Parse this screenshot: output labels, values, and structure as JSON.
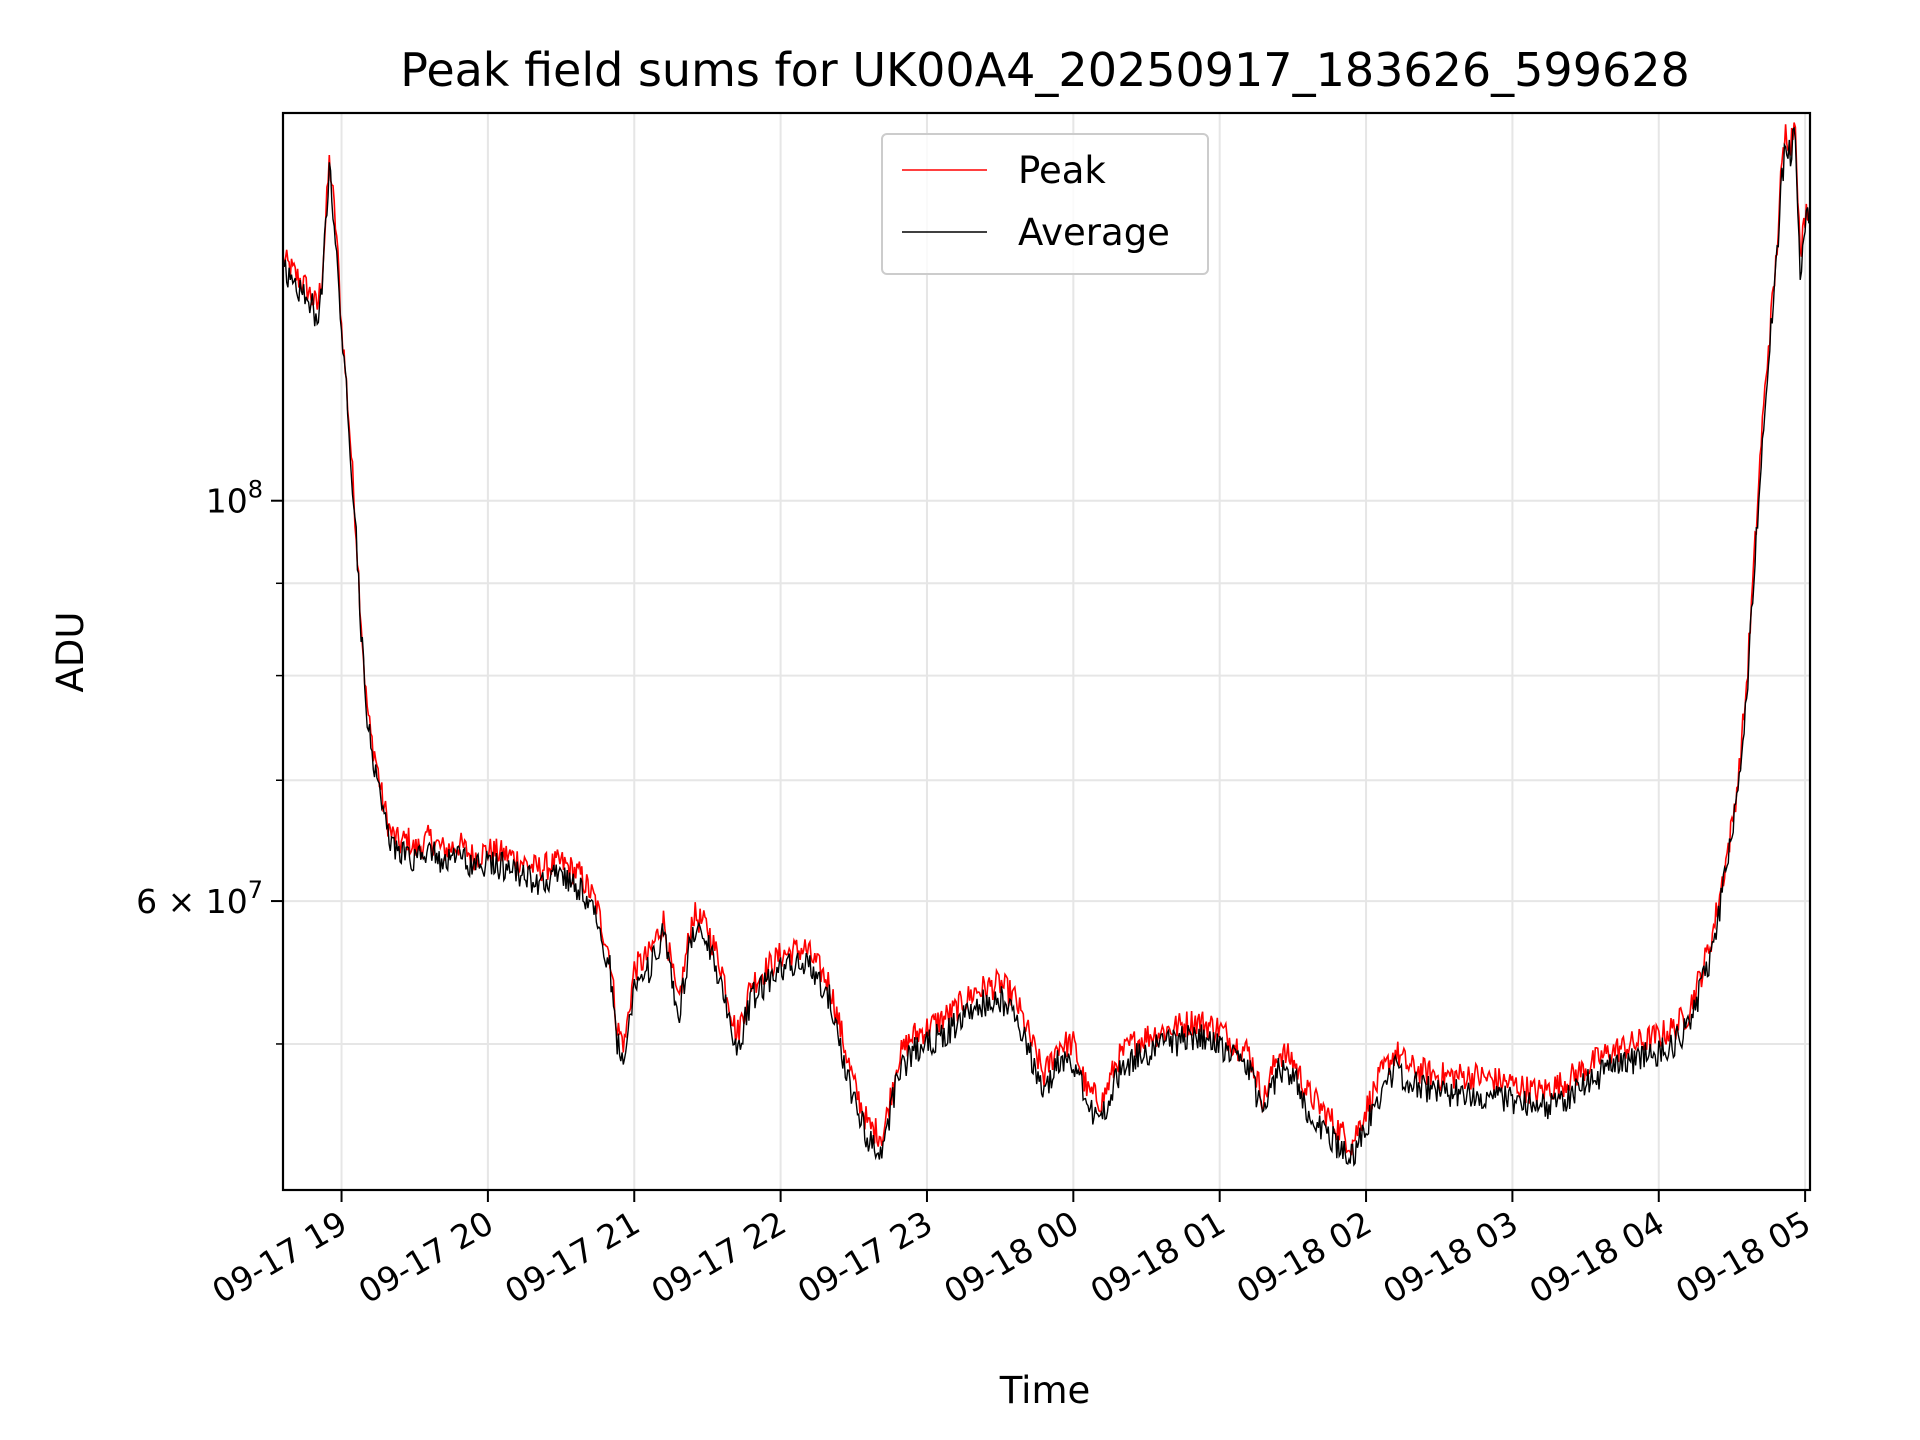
{
  "chart_data": {
    "type": "line",
    "title": "Peak field sums for UK00A4_20250917_183626_599628",
    "xlabel": "Time",
    "ylabel": "ADU",
    "y_scale": "log",
    "ylim": [
      41500000,
      164000000
    ],
    "xlim": [
      "2025-09-17 18:36",
      "2025-09-18 05:02"
    ],
    "grid": true,
    "legend_position": "top-center",
    "x_ticks": [
      {
        "t": "2025-09-17 19:00",
        "label": "09-17 19"
      },
      {
        "t": "2025-09-17 20:00",
        "label": "09-17 20"
      },
      {
        "t": "2025-09-17 21:00",
        "label": "09-17 21"
      },
      {
        "t": "2025-09-17 22:00",
        "label": "09-17 22"
      },
      {
        "t": "2025-09-17 23:00",
        "label": "09-17 23"
      },
      {
        "t": "2025-09-18 00:00",
        "label": "09-18 00"
      },
      {
        "t": "2025-09-18 01:00",
        "label": "09-18 01"
      },
      {
        "t": "2025-09-18 02:00",
        "label": "09-18 02"
      },
      {
        "t": "2025-09-18 03:00",
        "label": "09-18 03"
      },
      {
        "t": "2025-09-18 04:00",
        "label": "09-18 04"
      },
      {
        "t": "2025-09-18 05:00",
        "label": "09-18 05"
      }
    ],
    "y_major_ticks": [
      {
        "value": 100000000,
        "base": "10",
        "exp": "8",
        "coef": ""
      },
      {
        "value": 60000000,
        "base": "10",
        "exp": "7",
        "coef": "6 × "
      }
    ],
    "y_minor_ticks": [
      50000000,
      70000000,
      80000000,
      90000000
    ],
    "series": [
      {
        "name": "Peak",
        "color": "#ff0000"
      },
      {
        "name": "Average",
        "color": "#000000"
      }
    ],
    "x": [
      "2025-09-17 18:36",
      "2025-09-17 18:40",
      "2025-09-17 18:46",
      "2025-09-17 18:50",
      "2025-09-17 18:52",
      "2025-09-17 18:55",
      "2025-09-17 18:56",
      "2025-09-17 18:58",
      "2025-09-17 19:00",
      "2025-09-17 19:02",
      "2025-09-17 19:04",
      "2025-09-17 19:06",
      "2025-09-17 19:08",
      "2025-09-17 19:10",
      "2025-09-17 19:12",
      "2025-09-17 19:14",
      "2025-09-17 19:17",
      "2025-09-17 19:20",
      "2025-09-17 19:24",
      "2025-09-17 19:27",
      "2025-09-17 19:30",
      "2025-09-17 19:36",
      "2025-09-17 19:42",
      "2025-09-17 19:48",
      "2025-09-17 19:54",
      "2025-09-17 20:00",
      "2025-09-17 20:10",
      "2025-09-17 20:20",
      "2025-09-17 20:30",
      "2025-09-17 20:38",
      "2025-09-17 20:44",
      "2025-09-17 20:50",
      "2025-09-17 20:53",
      "2025-09-17 20:56",
      "2025-09-17 21:00",
      "2025-09-17 21:06",
      "2025-09-17 21:12",
      "2025-09-17 21:18",
      "2025-09-17 21:24",
      "2025-09-17 21:30",
      "2025-09-17 21:36",
      "2025-09-17 21:42",
      "2025-09-17 21:48",
      "2025-09-17 21:54",
      "2025-09-17 22:00",
      "2025-09-17 22:10",
      "2025-09-17 22:20",
      "2025-09-17 22:30",
      "2025-09-17 22:36",
      "2025-09-17 22:42",
      "2025-09-17 22:48",
      "2025-09-17 22:54",
      "2025-09-17 23:00",
      "2025-09-17 23:10",
      "2025-09-17 23:20",
      "2025-09-17 23:30",
      "2025-09-17 23:36",
      "2025-09-17 23:42",
      "2025-09-17 23:48",
      "2025-09-17 23:54",
      "2025-09-18 00:00",
      "2025-09-18 00:06",
      "2025-09-18 00:12",
      "2025-09-18 00:18",
      "2025-09-18 00:24",
      "2025-09-18 00:30",
      "2025-09-18 00:40",
      "2025-09-18 00:50",
      "2025-09-18 01:00",
      "2025-09-18 01:06",
      "2025-09-18 01:12",
      "2025-09-18 01:18",
      "2025-09-18 01:24",
      "2025-09-18 01:30",
      "2025-09-18 01:36",
      "2025-09-18 01:42",
      "2025-09-18 01:48",
      "2025-09-18 01:54",
      "2025-09-18 02:00",
      "2025-09-18 02:06",
      "2025-09-18 02:12",
      "2025-09-18 02:18",
      "2025-09-18 02:30",
      "2025-09-18 02:45",
      "2025-09-18 03:00",
      "2025-09-18 03:10",
      "2025-09-18 03:20",
      "2025-09-18 03:30",
      "2025-09-18 03:40",
      "2025-09-18 03:50",
      "2025-09-18 04:00",
      "2025-09-18 04:06",
      "2025-09-18 04:12",
      "2025-09-18 04:18",
      "2025-09-18 04:22",
      "2025-09-18 04:26",
      "2025-09-18 04:30",
      "2025-09-18 04:33",
      "2025-09-18 04:36",
      "2025-09-18 04:39",
      "2025-09-18 04:42",
      "2025-09-18 04:45",
      "2025-09-18 04:48",
      "2025-09-18 04:50",
      "2025-09-18 04:52",
      "2025-09-18 04:54",
      "2025-09-18 04:56",
      "2025-09-18 04:58",
      "2025-09-18 05:00",
      "2025-09-18 05:02"
    ],
    "peak": [
      136000000,
      134000000,
      131000000,
      128000000,
      133000000,
      154000000,
      150000000,
      140000000,
      125000000,
      116000000,
      106000000,
      96000000,
      86000000,
      78000000,
      74000000,
      72000000,
      68000000,
      65500000,
      64500000,
      65000000,
      64000000,
      65000000,
      64000000,
      64500000,
      63500000,
      64000000,
      63500000,
      62500000,
      63000000,
      62000000,
      60000000,
      56000000,
      51000000,
      50000000,
      55000000,
      56000000,
      58500000,
      52500000,
      59000000,
      58000000,
      55000000,
      50500000,
      54000000,
      55000000,
      56000000,
      56500000,
      54000000,
      47500000,
      45000000,
      44500000,
      49000000,
      50500000,
      51000000,
      52000000,
      53500000,
      54000000,
      53000000,
      50500000,
      48000000,
      50000000,
      50000000,
      47000000,
      46500000,
      49000000,
      50000000,
      50500000,
      51000000,
      51500000,
      51000000,
      50000000,
      49500000,
      46500000,
      49500000,
      49000000,
      47000000,
      46000000,
      45000000,
      44000000,
      46000000,
      48000000,
      49500000,
      48500000,
      48000000,
      48000000,
      47500000,
      47000000,
      47500000,
      48500000,
      49500000,
      50000000,
      50500000,
      51000000,
      52000000,
      55000000,
      57500000,
      61500000,
      66000000,
      71000000,
      79000000,
      92000000,
      108000000,
      122000000,
      135000000,
      150000000,
      160000000,
      158000000,
      163000000,
      136000000,
      144000000,
      146000000
    ],
    "average": [
      134000000,
      132500000,
      129500000,
      126500000,
      131500000,
      152000000,
      148000000,
      138500000,
      123500000,
      114500000,
      105000000,
      95000000,
      85000000,
      77000000,
      73000000,
      71000000,
      67000000,
      64500000,
      63500000,
      64000000,
      63000000,
      64000000,
      63000000,
      63500000,
      62500000,
      63000000,
      62500000,
      61500000,
      62000000,
      61000000,
      59000000,
      55000000,
      50000000,
      49000000,
      54000000,
      55000000,
      57500000,
      51500000,
      58000000,
      57000000,
      54000000,
      49500000,
      53000000,
      54000000,
      55000000,
      55500000,
      53000000,
      46500000,
      44200000,
      43800000,
      48000000,
      49500000,
      50000000,
      51000000,
      52500000,
      53000000,
      52000000,
      49500000,
      47000000,
      49000000,
      49000000,
      46000000,
      45500000,
      48000000,
      49000000,
      49500000,
      50000000,
      50500000,
      50000000,
      49000000,
      48500000,
      45500000,
      48500000,
      48000000,
      46000000,
      45000000,
      44000000,
      43200000,
      45000000,
      47000000,
      48500000,
      47500000,
      47000000,
      47000000,
      46500000,
      46000000,
      46500000,
      47500000,
      48500000,
      49000000,
      49500000,
      50000000,
      51000000,
      54000000,
      56500000,
      60500000,
      65000000,
      70000000,
      78000000,
      90500000,
      106000000,
      120000000,
      133000000,
      148000000,
      158000000,
      156000000,
      160500000,
      134000000,
      142000000,
      144000000
    ]
  }
}
